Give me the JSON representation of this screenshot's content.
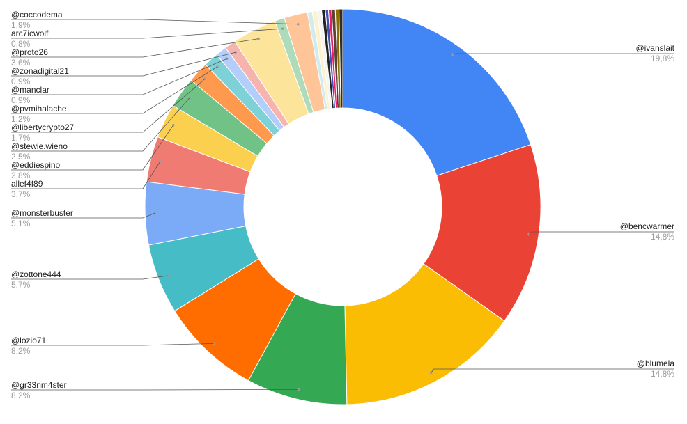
{
  "chart_data": {
    "type": "pie",
    "donut": true,
    "title": "",
    "slices": [
      {
        "label": "@ivanslait",
        "value": 19.8,
        "value_text": "19,8%",
        "color": "#4285F4",
        "side": "right"
      },
      {
        "label": "@bencwarmer",
        "value": 14.8,
        "value_text": "14,8%",
        "color": "#EA4335",
        "side": "right"
      },
      {
        "label": "@blumela",
        "value": 14.8,
        "value_text": "14,8%",
        "color": "#FBBC04",
        "side": "right"
      },
      {
        "label": "@gr33nm4ster",
        "value": 8.2,
        "value_text": "8,2%",
        "color": "#34A853",
        "side": "left"
      },
      {
        "label": "@lozio71",
        "value": 8.2,
        "value_text": "8,2%",
        "color": "#FF6D01",
        "side": "left"
      },
      {
        "label": "@zottone444",
        "value": 5.7,
        "value_text": "5,7%",
        "color": "#46BDC6",
        "side": "left"
      },
      {
        "label": "@monsterbuster",
        "value": 5.1,
        "value_text": "5,1%",
        "color": "#7BAAF7",
        "side": "left"
      },
      {
        "label": "allef4f89",
        "value": 3.7,
        "value_text": "3,7%",
        "color": "#F07B72",
        "side": "left"
      },
      {
        "label": "@eddiespino",
        "value": 2.8,
        "value_text": "2,8%",
        "color": "#FCD04F",
        "side": "left"
      },
      {
        "label": "@stewie.wieno",
        "value": 2.5,
        "value_text": "2,5%",
        "color": "#71C287",
        "side": "left"
      },
      {
        "label": "@libertycrypto27",
        "value": 1.7,
        "value_text": "1,7%",
        "color": "#FF994D",
        "side": "left"
      },
      {
        "label": "@pvmihalache",
        "value": 1.2,
        "value_text": "1,2%",
        "color": "#7ED1D7",
        "side": "left"
      },
      {
        "label": "@manclar",
        "value": 0.9,
        "value_text": "0,9%",
        "color": "#B3CEFB",
        "side": "left"
      },
      {
        "label": "@zonadigital21",
        "value": 0.9,
        "value_text": "0,9%",
        "color": "#F7B4AE",
        "side": "left"
      },
      {
        "label": "@proto26",
        "value": 3.6,
        "value_text": "3,6%",
        "color": "#FDE49B",
        "side": "left"
      },
      {
        "label": "arc7icwolf",
        "value": 0.8,
        "value_text": "0,8%",
        "color": "#AEDCBA",
        "side": "left"
      },
      {
        "label": "@coccodema",
        "value": 1.9,
        "value_text": "1,9%",
        "color": "#FFC599",
        "side": "left"
      },
      {
        "label": "",
        "value": 0.4,
        "color": "#CFEDEF",
        "side": "none"
      },
      {
        "label": "",
        "value": 0.4,
        "color": "#FEF1CD",
        "side": "none"
      },
      {
        "label": "",
        "value": 0.35,
        "color": "#F4F4F4",
        "side": "none"
      },
      {
        "label": "",
        "value": 0.3,
        "color": "#222222",
        "side": "none"
      },
      {
        "label": "",
        "value": 0.25,
        "color": "#3F51B5",
        "side": "none"
      },
      {
        "label": "",
        "value": 0.25,
        "color": "#E91E63",
        "side": "none"
      },
      {
        "label": "",
        "value": 0.3,
        "color": "#5D4037",
        "side": "none"
      },
      {
        "label": "",
        "value": 0.3,
        "color": "#8D6E00",
        "side": "none"
      },
      {
        "label": "",
        "value": 0.3,
        "color": "#2E2E2E",
        "side": "none"
      }
    ],
    "legend": "none"
  }
}
